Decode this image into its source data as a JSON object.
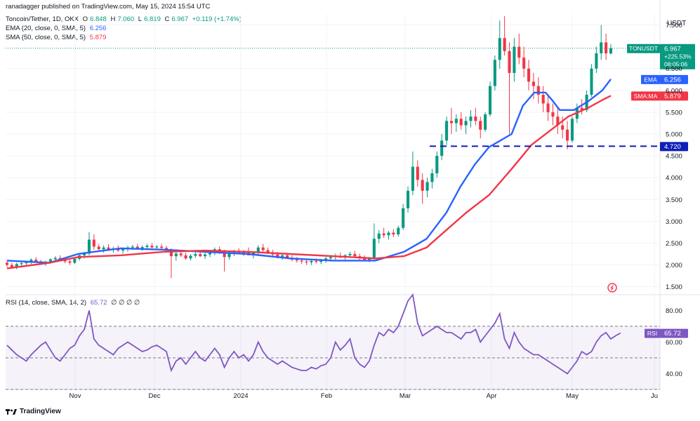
{
  "header": {
    "published": "ranadagger published on TradingView.com, May 15, 2024 15:54 UTC",
    "symbol": "Toncoin/Tether, 1D, OKX",
    "o_label": "O",
    "o": "6.848",
    "h_label": "H",
    "h": "7.060",
    "l_label": "L",
    "l": "6.819",
    "c_label": "C",
    "c": "6.967",
    "change": "+0.119 (+1.74%)",
    "ema_label": "EMA (20, close, 0, SMA, 5)",
    "ema_value": "6.256",
    "sma_label": "SMA (50, close, 0, SMA, 5)",
    "sma_value": "5.879",
    "rsi_label": "RSI (14, close, SMA, 14, 2)",
    "rsi_value": "65.72",
    "rsi_extra": "∅ ∅ ∅ ∅"
  },
  "price_axis": {
    "currency": "USDT",
    "ticks": [
      "7.500",
      "6.500",
      "6.000",
      "5.500",
      "5.000",
      "4.500",
      "4.000",
      "3.500",
      "3.000",
      "2.500",
      "2.000",
      "1.500"
    ]
  },
  "rsi_axis": {
    "ticks": [
      "80.00",
      "60.00",
      "40.00"
    ]
  },
  "time_axis": {
    "ticks": [
      "Nov",
      "Dec",
      "2024",
      "Feb",
      "Mar",
      "Apr",
      "May",
      "Ju"
    ]
  },
  "labels": {
    "symbol_tag": "TONUSDT",
    "last_price": "6.967",
    "last_change": "+225.53%",
    "countdown": "08:05:06",
    "ema_tag": "EMA",
    "ema_tag_value": "6.256",
    "sma_tag": "SMA:MA",
    "sma_tag_value": "5.879",
    "support_value": "4.720",
    "rsi_tag": "RSI",
    "rsi_tag_value": "65.72"
  },
  "footer": {
    "brand": "TradingView",
    "logo": "tradingview-logo"
  },
  "colors": {
    "up": "#089981",
    "down": "#f23645",
    "ema": "#2962ff",
    "sma": "#f23645",
    "rsi": "#7e57c2",
    "rsi_band": "#7e57c2",
    "support": "#0d1fb8",
    "grid": "#f0f3fa"
  },
  "chart_data": [
    {
      "type": "candlestick",
      "title": "Toncoin/Tether, 1D, OKX",
      "ylabel": "USDT",
      "ylim": [
        1.35,
        7.75
      ],
      "x_ticks": [
        "Nov",
        "Dec",
        "2024",
        "Feb",
        "Mar",
        "Apr",
        "May",
        "Ju"
      ],
      "support_level": 4.72,
      "series": [
        {
          "name": "EMA (20, close, 0, SMA, 5)",
          "last": 6.256,
          "x": [
            0,
            15,
            25,
            40,
            55,
            70,
            85,
            100,
            115,
            130,
            140,
            148,
            155,
            160,
            165,
            170,
            178,
            182,
            186,
            190,
            192,
            195,
            200,
            205,
            210,
            213
          ],
          "y": [
            2.1,
            2.05,
            2.25,
            2.38,
            2.35,
            2.3,
            2.25,
            2.15,
            2.1,
            2.1,
            2.3,
            2.6,
            3.2,
            3.8,
            4.3,
            4.7,
            5.0,
            5.65,
            5.95,
            5.95,
            5.8,
            5.55,
            5.55,
            5.75,
            6.0,
            6.256
          ]
        },
        {
          "name": "SMA (50, close, 0, SMA, 5)",
          "last": 5.879,
          "x": [
            0,
            15,
            25,
            40,
            55,
            70,
            85,
            100,
            115,
            130,
            140,
            148,
            155,
            162,
            170,
            178,
            185,
            192,
            198,
            205,
            210,
            213
          ],
          "y": [
            1.92,
            2.05,
            2.18,
            2.22,
            2.3,
            2.33,
            2.3,
            2.25,
            2.2,
            2.15,
            2.2,
            2.4,
            2.8,
            3.2,
            3.6,
            4.2,
            4.75,
            5.1,
            5.4,
            5.6,
            5.78,
            5.879
          ]
        }
      ],
      "candles": [
        [
          2.05,
          2.1,
          1.95,
          2.0
        ],
        [
          2.0,
          2.05,
          1.92,
          1.95
        ],
        [
          1.95,
          2.05,
          1.9,
          2.02
        ],
        [
          2.02,
          2.08,
          1.98,
          2.04
        ],
        [
          2.04,
          2.1,
          2.0,
          2.06
        ],
        [
          2.06,
          2.15,
          2.02,
          2.12
        ],
        [
          2.12,
          2.18,
          2.05,
          2.08
        ],
        [
          2.08,
          2.12,
          2.0,
          2.03
        ],
        [
          2.03,
          2.1,
          1.98,
          2.07
        ],
        [
          2.07,
          2.15,
          2.03,
          2.13
        ],
        [
          2.13,
          2.2,
          2.08,
          2.16
        ],
        [
          2.16,
          2.22,
          2.1,
          2.12
        ],
        [
          2.12,
          2.16,
          2.04,
          2.08
        ],
        [
          2.08,
          2.12,
          2.0,
          2.05
        ],
        [
          2.05,
          2.15,
          2.02,
          2.14
        ],
        [
          2.14,
          2.25,
          2.1,
          2.22
        ],
        [
          2.22,
          2.3,
          2.15,
          2.26
        ],
        [
          2.26,
          2.75,
          2.22,
          2.58
        ],
        [
          2.58,
          2.7,
          2.35,
          2.42
        ],
        [
          2.42,
          2.48,
          2.3,
          2.36
        ],
        [
          2.36,
          2.45,
          2.28,
          2.4
        ],
        [
          2.4,
          2.48,
          2.32,
          2.35
        ],
        [
          2.35,
          2.42,
          2.28,
          2.38
        ],
        [
          2.38,
          2.45,
          2.3,
          2.33
        ],
        [
          2.33,
          2.4,
          2.26,
          2.37
        ],
        [
          2.37,
          2.44,
          2.3,
          2.4
        ],
        [
          2.4,
          2.46,
          2.34,
          2.42
        ],
        [
          2.42,
          2.48,
          2.36,
          2.38
        ],
        [
          2.38,
          2.45,
          2.32,
          2.41
        ],
        [
          2.41,
          2.48,
          2.36,
          2.44
        ],
        [
          2.44,
          2.5,
          2.38,
          2.4
        ],
        [
          2.4,
          2.46,
          2.34,
          2.42
        ],
        [
          2.42,
          2.48,
          2.36,
          2.39
        ],
        [
          2.39,
          2.44,
          2.3,
          2.33
        ],
        [
          2.33,
          2.38,
          1.7,
          2.2
        ],
        [
          2.2,
          2.3,
          2.1,
          2.26
        ],
        [
          2.26,
          2.34,
          2.18,
          2.22
        ],
        [
          2.22,
          2.28,
          2.12,
          2.15
        ],
        [
          2.15,
          2.25,
          2.1,
          2.21
        ],
        [
          2.21,
          2.3,
          2.16,
          2.25
        ],
        [
          2.25,
          2.32,
          2.18,
          2.2
        ],
        [
          2.2,
          2.28,
          2.14,
          2.24
        ],
        [
          2.24,
          2.33,
          2.18,
          2.28
        ],
        [
          2.28,
          2.4,
          2.22,
          2.36
        ],
        [
          2.36,
          2.42,
          2.25,
          2.28
        ],
        [
          2.28,
          2.35,
          1.85,
          2.18
        ],
        [
          2.18,
          2.3,
          2.12,
          2.26
        ],
        [
          2.26,
          2.35,
          2.2,
          2.3
        ],
        [
          2.3,
          2.38,
          2.24,
          2.27
        ],
        [
          2.27,
          2.34,
          2.2,
          2.31
        ],
        [
          2.31,
          2.4,
          2.25,
          2.22
        ],
        [
          2.22,
          2.3,
          2.15,
          2.28
        ],
        [
          2.28,
          2.45,
          2.24,
          2.4
        ],
        [
          2.4,
          2.48,
          2.3,
          2.34
        ],
        [
          2.34,
          2.4,
          2.25,
          2.29
        ],
        [
          2.29,
          2.35,
          2.2,
          2.24
        ],
        [
          2.24,
          2.3,
          2.15,
          2.19
        ],
        [
          2.19,
          2.26,
          2.12,
          2.22
        ],
        [
          2.22,
          2.28,
          2.14,
          2.16
        ],
        [
          2.16,
          2.22,
          2.08,
          2.12
        ],
        [
          2.12,
          2.18,
          2.05,
          2.1
        ],
        [
          2.1,
          2.16,
          2.02,
          2.08
        ],
        [
          2.08,
          2.14,
          2.0,
          2.06
        ],
        [
          2.06,
          2.12,
          2.0,
          2.09
        ],
        [
          2.09,
          2.15,
          2.03,
          2.07
        ],
        [
          2.07,
          2.14,
          2.02,
          2.11
        ],
        [
          2.11,
          2.18,
          2.05,
          2.15
        ],
        [
          2.15,
          2.22,
          2.1,
          2.18
        ],
        [
          2.18,
          2.26,
          2.12,
          2.21
        ],
        [
          2.21,
          2.28,
          2.15,
          2.17
        ],
        [
          2.17,
          2.25,
          2.12,
          2.22
        ],
        [
          2.22,
          2.3,
          2.16,
          2.25
        ],
        [
          2.25,
          2.32,
          2.18,
          2.2
        ],
        [
          2.2,
          2.26,
          2.12,
          2.16
        ],
        [
          2.16,
          2.22,
          2.08,
          2.12
        ],
        [
          2.12,
          2.18,
          2.06,
          2.15
        ],
        [
          2.15,
          2.95,
          2.12,
          2.6
        ],
        [
          2.6,
          2.8,
          2.5,
          2.72
        ],
        [
          2.72,
          2.85,
          2.62,
          2.68
        ],
        [
          2.68,
          2.78,
          2.58,
          2.74
        ],
        [
          2.74,
          2.82,
          2.64,
          2.7
        ],
        [
          2.7,
          2.9,
          2.65,
          2.85
        ],
        [
          2.85,
          3.4,
          2.8,
          3.3
        ],
        [
          3.3,
          3.8,
          3.2,
          3.7
        ],
        [
          3.7,
          4.6,
          3.6,
          4.25
        ],
        [
          4.25,
          4.4,
          3.8,
          3.95
        ],
        [
          3.95,
          4.1,
          3.4,
          3.7
        ],
        [
          3.7,
          4.0,
          3.55,
          3.9
        ],
        [
          3.9,
          4.2,
          3.75,
          4.1
        ],
        [
          4.1,
          4.6,
          4.0,
          4.5
        ],
        [
          4.5,
          5.0,
          4.4,
          4.85
        ],
        [
          4.85,
          5.4,
          4.75,
          5.3
        ],
        [
          5.3,
          5.6,
          5.0,
          5.25
        ],
        [
          5.25,
          5.45,
          5.05,
          5.35
        ],
        [
          5.35,
          5.5,
          5.1,
          5.2
        ],
        [
          5.2,
          5.4,
          5.0,
          5.3
        ],
        [
          5.3,
          5.55,
          5.15,
          5.4
        ],
        [
          5.4,
          5.6,
          5.2,
          5.3
        ],
        [
          5.3,
          5.4,
          4.9,
          5.1
        ],
        [
          5.1,
          5.5,
          5.05,
          5.45
        ],
        [
          5.45,
          6.2,
          5.4,
          6.1
        ],
        [
          6.1,
          6.8,
          6.0,
          6.7
        ],
        [
          6.7,
          7.6,
          6.5,
          7.2
        ],
        [
          7.2,
          7.7,
          6.8,
          6.9
        ],
        [
          6.9,
          7.1,
          5.0,
          6.4
        ],
        [
          6.4,
          7.2,
          6.2,
          7.0
        ],
        [
          7.0,
          7.3,
          6.6,
          6.75
        ],
        [
          6.75,
          7.0,
          6.3,
          6.5
        ],
        [
          6.5,
          6.7,
          6.0,
          6.2
        ],
        [
          6.2,
          6.4,
          5.8,
          6.1
        ],
        [
          6.1,
          6.3,
          5.7,
          5.9
        ],
        [
          5.9,
          6.1,
          5.5,
          5.7
        ],
        [
          5.7,
          5.9,
          5.3,
          5.5
        ],
        [
          5.5,
          5.7,
          5.2,
          5.4
        ],
        [
          5.4,
          5.6,
          5.0,
          5.2
        ],
        [
          5.2,
          5.4,
          4.9,
          5.1
        ],
        [
          5.1,
          5.3,
          4.65,
          4.85
        ],
        [
          4.85,
          5.4,
          4.8,
          5.35
        ],
        [
          5.35,
          5.7,
          5.25,
          5.6
        ],
        [
          5.6,
          5.8,
          5.45,
          5.55
        ],
        [
          5.55,
          6.0,
          5.5,
          5.9
        ],
        [
          5.9,
          6.6,
          5.85,
          6.5
        ],
        [
          6.5,
          7.0,
          6.4,
          6.85
        ],
        [
          6.85,
          7.5,
          6.7,
          7.1
        ],
        [
          7.1,
          7.3,
          6.7,
          6.85
        ],
        [
          6.848,
          7.06,
          6.819,
          6.967
        ]
      ]
    },
    {
      "type": "line",
      "title": "RSI (14, close, SMA, 14, 2)",
      "ylim": [
        30,
        90
      ],
      "bands": [
        70,
        50,
        30
      ],
      "series": [
        {
          "name": "RSI (14, close, SMA, 14, 2)",
          "last": 65.72,
          "values": [
            58,
            55,
            52,
            50,
            48,
            52,
            55,
            58,
            60,
            55,
            50,
            48,
            52,
            56,
            58,
            64,
            68,
            80,
            62,
            58,
            56,
            54,
            52,
            56,
            58,
            60,
            58,
            56,
            54,
            55,
            57,
            58,
            56,
            54,
            42,
            48,
            50,
            46,
            50,
            54,
            50,
            48,
            52,
            56,
            52,
            44,
            50,
            54,
            50,
            52,
            48,
            52,
            60,
            54,
            50,
            48,
            46,
            48,
            46,
            44,
            43,
            42,
            42,
            44,
            43,
            45,
            46,
            50,
            60,
            55,
            58,
            62,
            50,
            46,
            44,
            48,
            58,
            66,
            64,
            68,
            66,
            70,
            78,
            86,
            90,
            72,
            64,
            66,
            68,
            70,
            68,
            66,
            66,
            64,
            62,
            66,
            66,
            68,
            60,
            64,
            68,
            72,
            78,
            62,
            56,
            66,
            60,
            56,
            54,
            52,
            52,
            50,
            48,
            46,
            44,
            42,
            40,
            44,
            48,
            54,
            52,
            54,
            60,
            64,
            66,
            62,
            64,
            65.72
          ]
        }
      ]
    }
  ]
}
